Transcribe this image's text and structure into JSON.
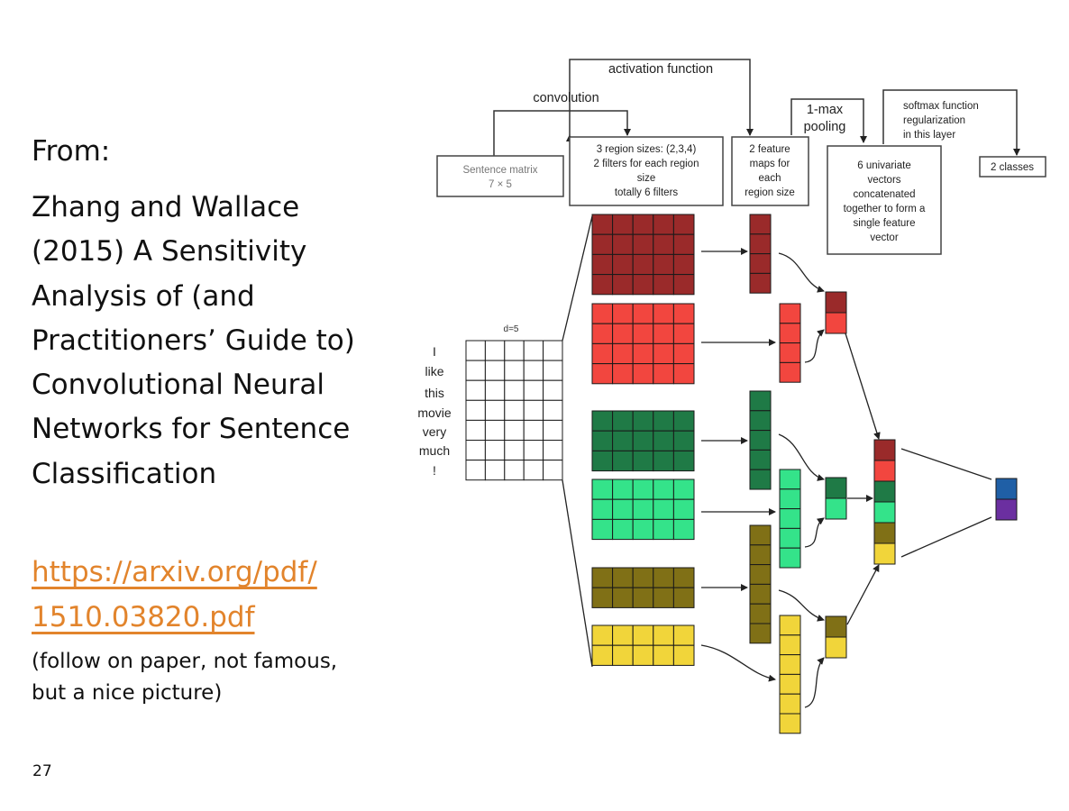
{
  "slide": {
    "from_label": "From:",
    "citation": "Zhang and Wallace (2015) A Sensitivity Analysis of (and Practitioners’ Guide to) Convolutional Neural Networks for Sentence Classification",
    "link_line1": "https://arxiv.org/pdf/",
    "link_line2": "1510.03820.pdf",
    "note": "(follow on paper, not famous, but a nice picture)",
    "slide_number": "27",
    "link_color": "#e2842c"
  },
  "diagram": {
    "top_labels": {
      "activation": "activation function",
      "convolution": "convolution",
      "one_max_line1": "1-max",
      "one_max_line2": "pooling",
      "softmax_line1": "softmax function",
      "softmax_line2": "regularization",
      "softmax_line3": "in this layer"
    },
    "boxes": {
      "sentence_matrix_line1": "Sentence matrix",
      "sentence_matrix_line2": "7 × 5",
      "region_line1": "3 region sizes: (2,3,4)",
      "region_line2": "2 filters for each region",
      "region_line3": "size",
      "region_line4": "totally 6 filters",
      "feature_line1": "2 feature",
      "feature_line2": "maps for",
      "feature_line3": "each",
      "feature_line4": "region size",
      "univariate_line1": "6 univariate",
      "univariate_line2": "vectors",
      "univariate_line3": "concatenated",
      "univariate_line4": "together to form a",
      "univariate_line5": "single feature",
      "univariate_line6": "vector",
      "classes": "2 classes"
    },
    "matrix_label": "d=5",
    "words": [
      "I",
      "like",
      "this",
      "movie",
      "very",
      "much",
      "!"
    ],
    "filters": [
      {
        "name": "dark-red",
        "rows": 4,
        "color": "#9a2a2a"
      },
      {
        "name": "red",
        "rows": 4,
        "color": "#f2463f"
      },
      {
        "name": "dark-green",
        "rows": 3,
        "color": "#1f7a46"
      },
      {
        "name": "light-green",
        "rows": 3,
        "color": "#34e38a"
      },
      {
        "name": "olive",
        "rows": 2,
        "color": "#807016"
      },
      {
        "name": "yellow",
        "rows": 2,
        "color": "#f1d53a"
      }
    ],
    "feature_maps": [
      {
        "name": "dark-red",
        "cells": 4,
        "color": "#9a2a2a"
      },
      {
        "name": "red",
        "cells": 4,
        "color": "#f2463f"
      },
      {
        "name": "dark-green",
        "cells": 5,
        "color": "#1f7a46"
      },
      {
        "name": "light-green",
        "cells": 5,
        "color": "#34e38a"
      },
      {
        "name": "olive",
        "cells": 6,
        "color": "#807016"
      },
      {
        "name": "yellow",
        "cells": 6,
        "color": "#f1d53a"
      }
    ],
    "output_colors": [
      "#1f5fa6",
      "#6b2fa0"
    ]
  }
}
